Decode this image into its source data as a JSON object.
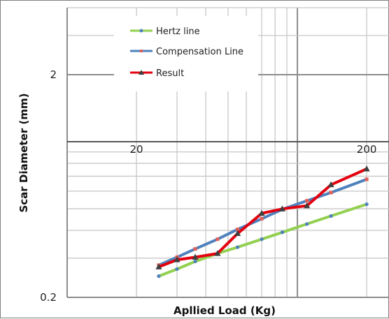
{
  "chart_data": {
    "type": "line",
    "title": "",
    "xlabel": "Apllied Load (Kg)",
    "ylabel": "Scar Diameter (mm)",
    "x_scale": "log",
    "y_scale": "log",
    "xlim": [
      10,
      250
    ],
    "ylim": [
      0.2,
      4
    ],
    "grid": true,
    "legend_position": "top-left",
    "x_tick_labels": [
      {
        "value": 20,
        "label": "20"
      },
      {
        "value": 200,
        "label": "200"
      }
    ],
    "y_tick_labels": [
      {
        "value": 2,
        "label": "2"
      },
      {
        "value": 0.2,
        "label": "0.2"
      }
    ],
    "series": [
      {
        "name": "Hertz line",
        "color": "#92d050",
        "marker": "circle",
        "x": [
          25,
          30,
          36,
          45,
          55,
          70,
          86,
          110,
          140,
          200
        ],
        "y": [
          0.249,
          0.268,
          0.29,
          0.315,
          0.336,
          0.365,
          0.392,
          0.427,
          0.464,
          0.524
        ]
      },
      {
        "name": "Compensation Line",
        "color": "#4f81bd",
        "marker": "square",
        "x": [
          25,
          30,
          36,
          45,
          55,
          70,
          86,
          110,
          140,
          200
        ],
        "y": [
          0.279,
          0.303,
          0.33,
          0.365,
          0.404,
          0.451,
          0.497,
          0.543,
          0.591,
          0.678
        ]
      },
      {
        "name": "Result",
        "color": "#e3000f",
        "marker": "triangle",
        "x": [
          25,
          30,
          36,
          45,
          55,
          70,
          86,
          110,
          140,
          200
        ],
        "y": [
          0.274,
          0.295,
          0.303,
          0.315,
          0.387,
          0.477,
          0.499,
          0.516,
          0.641,
          0.755
        ]
      }
    ]
  }
}
